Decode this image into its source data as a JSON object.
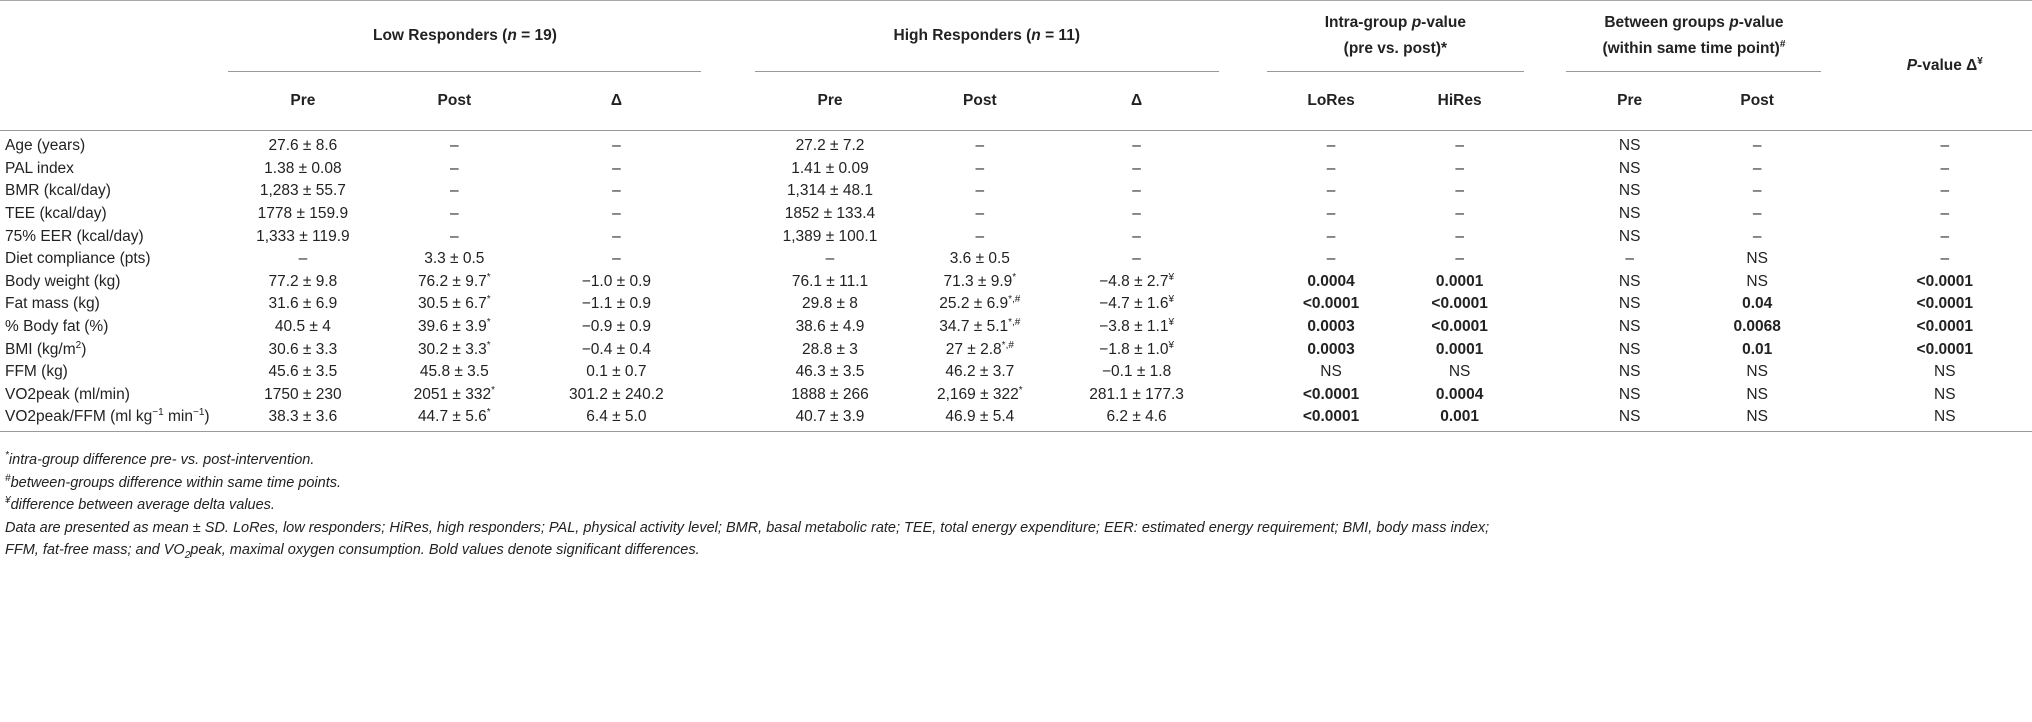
{
  "headers": {
    "low_responders": "Low Responders (",
    "n_italic": "n",
    "low_n": " = 19)",
    "high_responders": "High Responders (",
    "high_n": " = 11)",
    "intra_line1_a": "Intra-group ",
    "p_italic": "p",
    "intra_line1_b": "-value",
    "intra_line2": "(pre vs. post)*",
    "between_line1_a": "Between groups ",
    "between_line1_b": "-value",
    "between_line2": "(within same time point)",
    "between_sup": "#",
    "pdelta_P": "P",
    "pdelta_text": "-value Δ",
    "pdelta_sup": "¥",
    "sub_pre": "Pre",
    "sub_post": "Post",
    "sub_delta": "Δ",
    "sub_lores": "LoRes",
    "sub_hires": "HiRes"
  },
  "rows": [
    {
      "label": "Age (years)",
      "lr_pre": "27.6 ± 8.6",
      "lr_post": "–",
      "lr_post_sup": "",
      "lr_delta": "–",
      "hr_pre": "27.2 ± 7.2",
      "hr_post": "–",
      "hr_post_sup": "",
      "hr_delta": "–",
      "hr_delta_sup": "",
      "lores": "–",
      "hires": "–",
      "bg_pre": "NS",
      "bg_post": "–",
      "pdelta": "–"
    },
    {
      "label": "PAL index",
      "lr_pre": "1.38 ± 0.08",
      "lr_post": "–",
      "lr_post_sup": "",
      "lr_delta": "–",
      "hr_pre": "1.41 ± 0.09",
      "hr_post": "–",
      "hr_post_sup": "",
      "hr_delta": "–",
      "hr_delta_sup": "",
      "lores": "–",
      "hires": "–",
      "bg_pre": "NS",
      "bg_post": "–",
      "pdelta": "–"
    },
    {
      "label": "BMR (kcal/day)",
      "lr_pre": "1,283 ± 55.7",
      "lr_post": "–",
      "lr_post_sup": "",
      "lr_delta": "–",
      "hr_pre": "1,314 ± 48.1",
      "hr_post": "–",
      "hr_post_sup": "",
      "hr_delta": "–",
      "hr_delta_sup": "",
      "lores": "–",
      "hires": "–",
      "bg_pre": "NS",
      "bg_post": "–",
      "pdelta": "–"
    },
    {
      "label": "TEE (kcal/day)",
      "lr_pre": "1778 ± 159.9",
      "lr_post": "–",
      "lr_post_sup": "",
      "lr_delta": "–",
      "hr_pre": "1852 ± 133.4",
      "hr_post": "–",
      "hr_post_sup": "",
      "hr_delta": "–",
      "hr_delta_sup": "",
      "lores": "–",
      "hires": "–",
      "bg_pre": "NS",
      "bg_post": "–",
      "pdelta": "–"
    },
    {
      "label": "75% EER (kcal/day)",
      "lr_pre": "1,333 ± 119.9",
      "lr_post": "–",
      "lr_post_sup": "",
      "lr_delta": "–",
      "hr_pre": "1,389 ± 100.1",
      "hr_post": "–",
      "hr_post_sup": "",
      "hr_delta": "–",
      "hr_delta_sup": "",
      "lores": "–",
      "hires": "–",
      "bg_pre": "NS",
      "bg_post": "–",
      "pdelta": "–"
    },
    {
      "label": "Diet compliance (pts)",
      "lr_pre": "–",
      "lr_post": "3.3 ± 0.5",
      "lr_post_sup": "",
      "lr_delta": "–",
      "hr_pre": "–",
      "hr_post": "3.6 ± 0.5",
      "hr_post_sup": "",
      "hr_delta": "–",
      "hr_delta_sup": "",
      "lores": "–",
      "hires": "–",
      "bg_pre": "–",
      "bg_post": "NS",
      "pdelta": "–"
    },
    {
      "label": "Body weight (kg)",
      "lr_pre": "77.2 ± 9.8",
      "lr_post": "76.2 ± 9.7",
      "lr_post_sup": "*",
      "lr_delta": "−1.0 ± 0.9",
      "hr_pre": "76.1 ± 11.1",
      "hr_post": "71.3 ± 9.9",
      "hr_post_sup": "*",
      "hr_delta": "−4.8 ± 2.7",
      "hr_delta_sup": "¥",
      "lores": "0.0004",
      "hires": "0.0001",
      "bg_pre": "NS",
      "bg_post": "NS",
      "pdelta": "<0.0001"
    },
    {
      "label": "Fat mass (kg)",
      "lr_pre": "31.6 ± 6.9",
      "lr_post": "30.5 ± 6.7",
      "lr_post_sup": "*",
      "lr_delta": "−1.1 ± 0.9",
      "hr_pre": "29.8 ± 8",
      "hr_post": "25.2 ± 6.9",
      "hr_post_sup": "*,#",
      "hr_delta": "−4.7 ± 1.6",
      "hr_delta_sup": "¥",
      "lores": "<0.0001",
      "hires": "<0.0001",
      "bg_pre": "NS",
      "bg_post": "0.04",
      "pdelta": "<0.0001"
    },
    {
      "label": "% Body fat (%)",
      "lr_pre": "40.5 ± 4",
      "lr_post": "39.6 ± 3.9",
      "lr_post_sup": "*",
      "lr_delta": "−0.9 ± 0.9",
      "hr_pre": "38.6 ± 4.9",
      "hr_post": "34.7 ± 5.1",
      "hr_post_sup": "*,#",
      "hr_delta": "−3.8 ± 1.1",
      "hr_delta_sup": "¥",
      "lores": "0.0003",
      "hires": "<0.0001",
      "bg_pre": "NS",
      "bg_post": "0.0068",
      "pdelta": "<0.0001"
    },
    {
      "label": "BMI (kg/m",
      "label_sup": "2",
      "label_tail": ")",
      "lr_pre": "30.6 ± 3.3",
      "lr_post": "30.2 ± 3.3",
      "lr_post_sup": "*",
      "lr_delta": "−0.4 ± 0.4",
      "hr_pre": "28.8 ± 3",
      "hr_post": "27 ± 2.8",
      "hr_post_sup": "*,#",
      "hr_delta": "−1.8 ± 1.0",
      "hr_delta_sup": "¥",
      "lores": "0.0003",
      "hires": "0.0001",
      "bg_pre": "NS",
      "bg_post": "0.01",
      "pdelta": "<0.0001"
    },
    {
      "label": "FFM (kg)",
      "lr_pre": "45.6 ± 3.5",
      "lr_post": "45.8 ± 3.5",
      "lr_post_sup": "",
      "lr_delta": "0.1 ± 0.7",
      "hr_pre": "46.3 ± 3.5",
      "hr_post": "46.2 ± 3.7",
      "hr_post_sup": "",
      "hr_delta": "−0.1 ± 1.8",
      "hr_delta_sup": "",
      "lores": "NS",
      "hires": "NS",
      "bg_pre": "NS",
      "bg_post": "NS",
      "pdelta": "NS"
    },
    {
      "label": "VO2peak (ml/min)",
      "lr_pre": "1750 ± 230",
      "lr_post": "2051 ± 332",
      "lr_post_sup": "*",
      "lr_delta": "301.2 ± 240.2",
      "hr_pre": "1888 ± 266",
      "hr_post": "2,169 ± 322",
      "hr_post_sup": "*",
      "hr_delta": "281.1 ± 177.3",
      "hr_delta_sup": "",
      "lores": "<0.0001",
      "hires": "0.0004",
      "bg_pre": "NS",
      "bg_post": "NS",
      "pdelta": "NS"
    },
    {
      "label": "VO2peak/FFM (ml kg",
      "label_sup": "−1",
      "label_tail": " min",
      "label_sup2": "−1",
      "label_tail2": ")",
      "lr_pre": "38.3 ± 3.6",
      "lr_post": "44.7 ± 5.6",
      "lr_post_sup": "*",
      "lr_delta": "6.4 ± 5.0",
      "hr_pre": "40.7 ± 3.9",
      "hr_post": "46.9 ± 5.4",
      "hr_post_sup": "",
      "hr_delta": "6.2 ± 4.6",
      "hr_delta_sup": "",
      "lores": "<0.0001",
      "hires": "0.001",
      "bg_pre": "NS",
      "bg_post": "NS",
      "pdelta": "NS"
    }
  ],
  "notes": {
    "n1_sup": "*",
    "n1": "intra-group difference pre- vs. post-intervention.",
    "n2_sup": "#",
    "n2": "between-groups difference within same time points.",
    "n3_sup": "¥",
    "n3": "difference between average delta values.",
    "n4_line1": "Data are presented as mean ± SD. LoRes, low responders; HiRes, high responders; PAL, physical activity level; BMR, basal metabolic rate; TEE, total energy expenditure; EER: estimated energy requirement; BMI, body mass index;",
    "n4_line2a": "FFM, fat-free mass; and VO",
    "n4_line2_sub": "2",
    "n4_line2b": "peak, maximal oxygen consumption. Bold values denote significant differences."
  }
}
